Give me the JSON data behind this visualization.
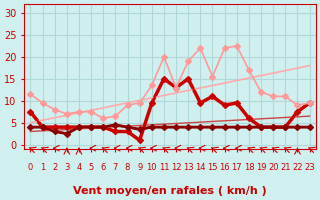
{
  "xlabel": "Vent moyen/en rafales ( km/h )",
  "bg_color": "#d0f0f0",
  "grid_color": "#b0d8d8",
  "x_ticks": [
    0,
    1,
    2,
    3,
    4,
    5,
    6,
    7,
    8,
    9,
    10,
    11,
    12,
    13,
    14,
    15,
    16,
    17,
    18,
    19,
    20,
    21,
    22,
    23
  ],
  "ylim": [
    -1,
    32
  ],
  "xlim": [
    -0.5,
    23.5
  ],
  "yticks": [
    0,
    5,
    10,
    15,
    20,
    25,
    30
  ],
  "lines": [
    {
      "x": [
        0,
        1,
        2,
        3,
        4,
        5,
        6,
        7,
        8,
        9,
        10,
        11,
        12,
        13,
        14,
        15,
        16,
        17,
        18,
        19,
        20,
        21,
        22,
        23
      ],
      "y": [
        7.5,
        4,
        4,
        4,
        4,
        4,
        4,
        3,
        3,
        1,
        9.5,
        15,
        13,
        15,
        9.5,
        11,
        9,
        9.5,
        6,
        4,
        4,
        4,
        7.5,
        9.5
      ],
      "color": "#cc0000",
      "lw": 1.5,
      "marker": "D",
      "ms": 3
    },
    {
      "x": [
        0,
        1,
        2,
        3,
        4,
        5,
        6,
        7,
        8,
        9,
        10,
        11,
        12,
        13,
        14,
        15,
        16,
        17,
        18,
        19,
        20,
        21,
        22,
        23
      ],
      "y": [
        7.5,
        4,
        4,
        4,
        4,
        4,
        4,
        3,
        3,
        1,
        9.5,
        15,
        13,
        15,
        9.5,
        11,
        9,
        9.5,
        6,
        4,
        4,
        4,
        7.5,
        9.5
      ],
      "color": "#cc0000",
      "lw": 2.5,
      "marker": null,
      "ms": 0
    },
    {
      "x": [
        0,
        1,
        2,
        3,
        4,
        5,
        6,
        7,
        8,
        9,
        10,
        11,
        12,
        13,
        14,
        15,
        16,
        17,
        18,
        19,
        20,
        21,
        22,
        23
      ],
      "y": [
        11.5,
        9.5,
        8,
        7,
        7.5,
        7.5,
        6,
        6.5,
        9,
        9.5,
        13.5,
        20,
        13,
        19,
        22,
        15.5,
        22,
        22.5,
        17,
        12,
        11,
        11,
        9,
        9.5
      ],
      "color": "#ff9999",
      "lw": 1.2,
      "marker": "D",
      "ms": 3
    },
    {
      "x": [
        0,
        1,
        2,
        3,
        4,
        5,
        6,
        7,
        8,
        9,
        10,
        11,
        12,
        13,
        14,
        15,
        16,
        17,
        18,
        19,
        20,
        21,
        22,
        23
      ],
      "y": [
        4,
        4,
        3,
        2.5,
        4,
        4,
        4,
        4.5,
        4,
        3.5,
        4,
        4,
        4,
        4,
        4,
        4,
        4,
        4,
        4,
        4,
        4,
        4,
        4,
        4
      ],
      "color": "#880000",
      "lw": 1.5,
      "marker": "D",
      "ms": 3
    },
    {
      "x": [
        0,
        1,
        2,
        3,
        4,
        5,
        6,
        7,
        8,
        9,
        10,
        11,
        12,
        13,
        14,
        15,
        16,
        17,
        18,
        19,
        20,
        21,
        22,
        23
      ],
      "y": [
        4,
        4,
        3,
        2.5,
        4,
        4,
        4,
        4.5,
        4,
        3.5,
        4,
        4,
        4,
        4,
        4,
        4,
        4,
        4,
        4,
        4,
        4,
        4,
        4,
        4
      ],
      "color": "#880000",
      "lw": 2.0,
      "marker": null,
      "ms": 0
    },
    {
      "x": [
        0,
        23
      ],
      "y": [
        5,
        18
      ],
      "color": "#ffaaaa",
      "lw": 1.2,
      "marker": null,
      "ms": 0
    },
    {
      "x": [
        0,
        23
      ],
      "y": [
        3,
        6.5
      ],
      "color": "#cc4444",
      "lw": 1.0,
      "marker": null,
      "ms": 0
    }
  ],
  "arrow_color": "#cc0000",
  "xlabel_color": "#cc0000",
  "tick_color": "#cc0000",
  "xlabel_fontsize": 8,
  "ytick_fontsize": 7,
  "xtick_fontsize": 6
}
